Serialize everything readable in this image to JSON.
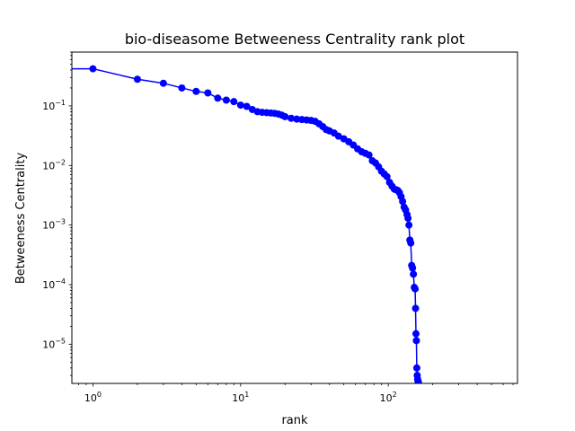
{
  "chart_data": {
    "type": "line",
    "title": "bio-diseasome Betweeness Centrality rank plot",
    "xlabel": "rank",
    "ylabel": "Betweeness Centrality",
    "xscale": "log",
    "yscale": "log",
    "xlim": [
      0.72,
      750
    ],
    "ylim": [
      2.2e-06,
      0.8
    ],
    "grid": false,
    "legend": "none",
    "x_tick_labels": [
      {
        "base": "10",
        "exp": "0"
      },
      {
        "base": "10",
        "exp": "1"
      },
      {
        "base": "10",
        "exp": "2"
      }
    ],
    "y_tick_labels": [
      {
        "base": "10",
        "exp": "−5"
      },
      {
        "base": "10",
        "exp": "−4"
      },
      {
        "base": "10",
        "exp": "−3"
      },
      {
        "base": "10",
        "exp": "−2"
      },
      {
        "base": "10",
        "exp": "−1"
      }
    ],
    "colors": {
      "line": "#0000ff",
      "marker": "#0000ff"
    },
    "series": [
      {
        "marker": "circle",
        "x": [
          1,
          2,
          3,
          4,
          5,
          6,
          7,
          8,
          9,
          10,
          11,
          12,
          13,
          14,
          15,
          16,
          17,
          18,
          19,
          20,
          22,
          24,
          26,
          28,
          30,
          32,
          34,
          36,
          38,
          40,
          43,
          46,
          50,
          54,
          58,
          62,
          66,
          70,
          74,
          78,
          82,
          86,
          90,
          94,
          98,
          102,
          106,
          110,
          113,
          116,
          119,
          122,
          125,
          128,
          131,
          134,
          136,
          138,
          140,
          142,
          144,
          146,
          148,
          150,
          152,
          153,
          154,
          155,
          156,
          157,
          158,
          159,
          160
        ],
        "y": [
          0.42,
          0.28,
          0.24,
          0.2,
          0.175,
          0.165,
          0.135,
          0.125,
          0.118,
          0.103,
          0.098,
          0.087,
          0.08,
          0.078,
          0.077,
          0.076,
          0.075,
          0.073,
          0.07,
          0.066,
          0.062,
          0.06,
          0.059,
          0.058,
          0.057,
          0.055,
          0.05,
          0.045,
          0.04,
          0.038,
          0.035,
          0.031,
          0.028,
          0.025,
          0.022,
          0.019,
          0.017,
          0.016,
          0.015,
          0.012,
          0.011,
          0.0095,
          0.008,
          0.0072,
          0.0065,
          0.0052,
          0.0045,
          0.004,
          0.0039,
          0.0038,
          0.0035,
          0.003,
          0.0025,
          0.002,
          0.0018,
          0.0015,
          0.0013,
          0.001,
          0.00056,
          0.0005,
          0.00021,
          0.00019,
          0.00015,
          9e-05,
          8.5e-05,
          4e-05,
          1.5e-05,
          1.15e-05,
          4e-06,
          3e-06,
          2.6e-06,
          2.4e-06,
          2.3e-06
        ]
      }
    ]
  }
}
